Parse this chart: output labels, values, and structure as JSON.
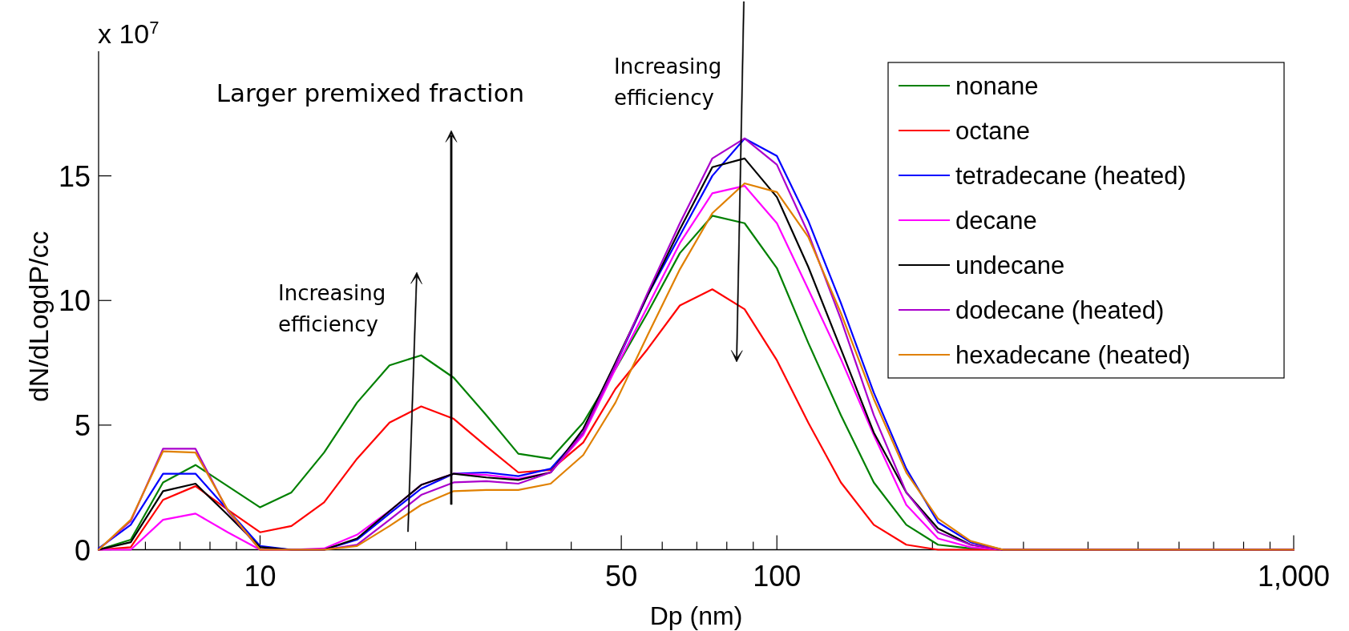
{
  "chart_data": {
    "type": "line",
    "xlabel": "Dp (nm)",
    "ylabel": "dN/dLogdP/cc",
    "x": [
      4.87,
      5.62,
      6.49,
      7.5,
      8.66,
      10,
      11.5,
      13.3,
      15.4,
      17.8,
      20.5,
      23.7,
      27.4,
      31.6,
      36.5,
      42.2,
      48.7,
      56.2,
      64.9,
      75,
      86.6,
      100,
      115,
      133,
      154,
      178,
      205,
      237,
      274,
      1000
    ],
    "series": [
      {
        "name": "nonane",
        "color": "#008000",
        "values": [
          0,
          0.4,
          2.7,
          3.4,
          2.55,
          1.7,
          2.3,
          3.9,
          5.9,
          7.4,
          7.8,
          6.9,
          5.4,
          3.85,
          3.65,
          5.1,
          7.25,
          9.5,
          11.9,
          13.4,
          13.1,
          11.3,
          8.3,
          5.4,
          2.7,
          1.0,
          0.2,
          0.05,
          0,
          0
        ]
      },
      {
        "name": "octane",
        "color": "#ff0000",
        "values": [
          0,
          0.1,
          2.0,
          2.55,
          1.6,
          0.7,
          0.95,
          1.9,
          3.65,
          5.1,
          5.75,
          5.25,
          4.15,
          3.1,
          3.2,
          4.3,
          6.45,
          8.05,
          9.8,
          10.45,
          9.65,
          7.6,
          5.1,
          2.7,
          1.0,
          0.2,
          0,
          0,
          0,
          0
        ]
      },
      {
        "name": "tetradecane (heated)",
        "color": "#0000ff",
        "values": [
          0.05,
          1.0,
          3.05,
          3.05,
          1.6,
          0.15,
          0,
          0,
          0.4,
          1.45,
          2.45,
          3.05,
          3.1,
          2.95,
          3.25,
          4.7,
          7.4,
          10.2,
          12.6,
          15.0,
          16.5,
          15.8,
          13.2,
          9.9,
          6.3,
          3.25,
          1.1,
          0.3,
          0,
          0
        ]
      },
      {
        "name": "decane",
        "color": "#ff00ff",
        "values": [
          0,
          0,
          1.2,
          1.45,
          0.7,
          0,
          0,
          0.05,
          0.6,
          1.55,
          2.6,
          3.05,
          3.0,
          2.85,
          3.1,
          4.6,
          7.25,
          9.75,
          12.3,
          14.3,
          14.6,
          13.1,
          10.45,
          7.65,
          4.6,
          1.8,
          0.45,
          0.1,
          0,
          0
        ]
      },
      {
        "name": "undecane",
        "color": "#000000",
        "values": [
          0,
          0.3,
          2.35,
          2.65,
          1.4,
          0.1,
          0,
          0,
          0.45,
          1.55,
          2.6,
          3.05,
          2.9,
          2.8,
          3.1,
          4.85,
          7.5,
          10.2,
          12.85,
          15.35,
          15.7,
          14.15,
          11.35,
          8.05,
          4.7,
          2.3,
          0.85,
          0.2,
          0,
          0
        ]
      },
      {
        "name": "dodecane (heated)",
        "color": "#aa00cc",
        "values": [
          0,
          1.15,
          4.05,
          4.05,
          1.55,
          0,
          0,
          0,
          0.2,
          1.2,
          2.2,
          2.7,
          2.75,
          2.65,
          3.1,
          4.7,
          7.4,
          10.3,
          13.1,
          15.7,
          16.5,
          15.45,
          12.7,
          9.25,
          5.4,
          2.3,
          0.7,
          0.2,
          0,
          0
        ]
      },
      {
        "name": "hexadecane (heated)",
        "color": "#e08000",
        "values": [
          0,
          1.2,
          3.95,
          3.9,
          1.6,
          0,
          0,
          0,
          0.15,
          0.95,
          1.8,
          2.35,
          2.4,
          2.4,
          2.65,
          3.8,
          5.9,
          8.6,
          11.25,
          13.5,
          14.7,
          14.35,
          12.55,
          9.5,
          6.05,
          3.1,
          1.25,
          0.35,
          0,
          0
        ]
      }
    ],
    "log": "x",
    "xlim": [
      4.87,
      1000
    ],
    "xticks": [
      {
        "value": 6,
        "label": null
      },
      {
        "value": 7,
        "label": null
      },
      {
        "value": 8,
        "label": null
      },
      {
        "value": 9,
        "label": null
      },
      10,
      {
        "value": 20,
        "label": null
      },
      {
        "value": 30,
        "label": null
      },
      {
        "value": 40,
        "label": null
      },
      50,
      {
        "value": 60,
        "label": null
      },
      {
        "value": 70,
        "label": null
      },
      {
        "value": 80,
        "label": null
      },
      {
        "value": 90,
        "label": null
      },
      100,
      {
        "value": 200,
        "label": null
      },
      {
        "value": 300,
        "label": null
      },
      {
        "value": 400,
        "label": null
      },
      {
        "value": 500,
        "label": null
      },
      {
        "value": 600,
        "label": null
      },
      {
        "value": 700,
        "label": null
      },
      {
        "value": 800,
        "label": null
      },
      {
        "value": 900,
        "label": null
      },
      {
        "value": 1000,
        "label": "1,000"
      }
    ],
    "ylim": [
      0,
      20
    ],
    "yticks": [
      0,
      5,
      10,
      15
    ],
    "legend": "top right",
    "annotations": [
      "x 10$^{7}$",
      "Larger premixed fraction",
      "Increasing efficiency",
      "Increasing efficiency"
    ]
  }
}
